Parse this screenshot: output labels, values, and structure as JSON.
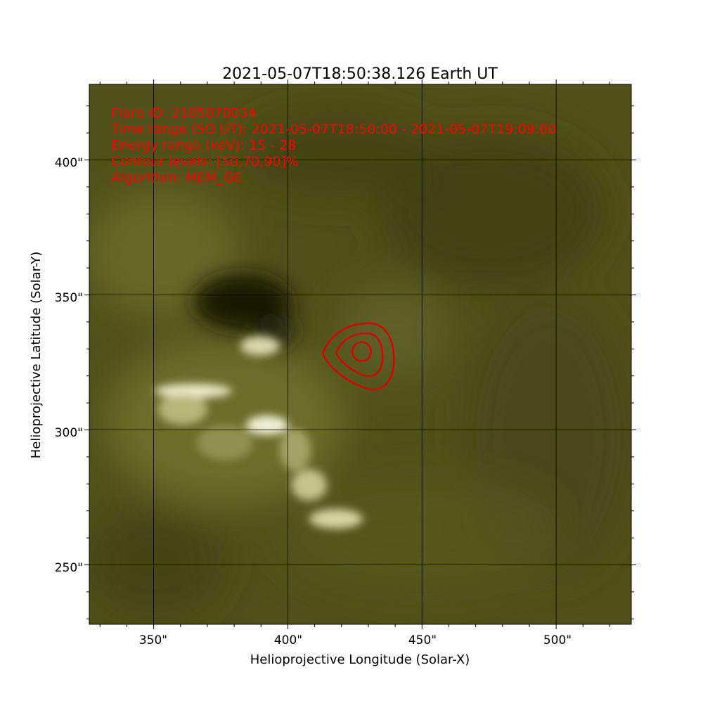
{
  "chart_data": {
    "type": "heatmap",
    "title": "2021-05-07T18:50:38.126   Earth UT",
    "xlabel": "Helioprojective Longitude (Solar-X)",
    "ylabel": "Helioprojective Latitude (Solar-Y)",
    "xlim": [
      326,
      528
    ],
    "ylim": [
      228,
      428
    ],
    "x_ticks": [
      350,
      400,
      450,
      500
    ],
    "y_ticks": [
      250,
      300,
      350,
      400
    ],
    "x_tick_labels": [
      "350\"",
      "400\"",
      "450\"",
      "500\""
    ],
    "y_tick_labels": [
      "250\"",
      "300\"",
      "350\"",
      "400\""
    ],
    "grid": true,
    "colormap": "olive/yellow",
    "colors": {
      "image_base": "#55551c",
      "contour": "#dd0000",
      "annotation": "#ff0000",
      "grid": "#000000"
    },
    "annotations": [
      "Flare ID: 2105070034",
      "Time range (SO UT): 2021-05-07T18:50:00 - 2021-05-07T19:09:00",
      "Energy range (keV): 15 - 28",
      "Contour levels: [50,70,90]%",
      "Algorithm: MEM_GE"
    ],
    "contours": {
      "levels_percent": [
        50,
        70,
        90
      ],
      "center": [
        427.5,
        329
      ],
      "half_widths_x": [
        10,
        6.5,
        3.5
      ],
      "half_heights_y": [
        10,
        6.5,
        3.5
      ]
    }
  }
}
